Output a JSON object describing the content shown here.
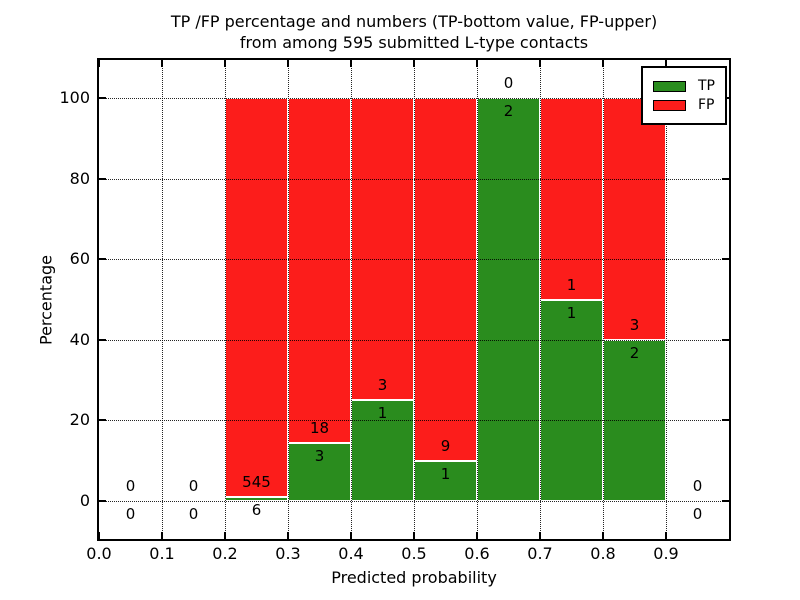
{
  "title": {
    "line1": "TP /FP percentage and numbers (TP-bottom value, FP-upper)",
    "line2": "from among 595 submitted L-type contacts"
  },
  "axes": {
    "ylabel": "Percentage",
    "xlabel": "Predicted probability",
    "ytick_labels": [
      "0",
      "20",
      "40",
      "60",
      "80",
      "100"
    ],
    "xtick_labels": [
      "0.0",
      "0.1",
      "0.2",
      "0.3",
      "0.4",
      "0.5",
      "0.6",
      "0.7",
      "0.8",
      "0.9"
    ]
  },
  "legend": {
    "tp": "TP",
    "fp": "FP"
  },
  "colors": {
    "tp_green": "#2a8c1e",
    "fp_red": "#fc1d1b",
    "grid": "#000000",
    "background": "#ffffff"
  },
  "chart_data": {
    "type": "bar",
    "stacked": true,
    "title": "TP /FP percentage and numbers (TP-bottom value, FP-upper)\nfrom among 595 submitted L-type contacts",
    "total_submitted": 595,
    "xlabel": "Predicted probability",
    "ylabel": "Percentage",
    "xlim": [
      0.0,
      1.0
    ],
    "ylim": [
      -9.5,
      109.5
    ],
    "xticks": [
      0.0,
      0.1,
      0.2,
      0.3,
      0.4,
      0.5,
      0.6,
      0.7,
      0.8,
      0.9
    ],
    "yticks": [
      0,
      20,
      40,
      60,
      80,
      100
    ],
    "grid": "dotted",
    "legend_position": "upper right",
    "series": [
      {
        "name": "TP",
        "color": "#2a8c1e",
        "position": "bottom"
      },
      {
        "name": "FP",
        "color": "#fc1d1b",
        "position": "top"
      }
    ],
    "bins": [
      {
        "x0": 0.0,
        "x1": 0.1,
        "tp": 0,
        "fp": 0,
        "tp_pct": null
      },
      {
        "x0": 0.1,
        "x1": 0.2,
        "tp": 0,
        "fp": 0,
        "tp_pct": null
      },
      {
        "x0": 0.2,
        "x1": 0.3,
        "tp": 6,
        "fp": 545,
        "tp_pct": 1.09
      },
      {
        "x0": 0.3,
        "x1": 0.4,
        "tp": 3,
        "fp": 18,
        "tp_pct": 14.29
      },
      {
        "x0": 0.4,
        "x1": 0.5,
        "tp": 1,
        "fp": 3,
        "tp_pct": 25.0
      },
      {
        "x0": 0.5,
        "x1": 0.6,
        "tp": 1,
        "fp": 9,
        "tp_pct": 10.0
      },
      {
        "x0": 0.6,
        "x1": 0.7,
        "tp": 2,
        "fp": 0,
        "tp_pct": 100.0
      },
      {
        "x0": 0.7,
        "x1": 0.8,
        "tp": 1,
        "fp": 1,
        "tp_pct": 50.0
      },
      {
        "x0": 0.8,
        "x1": 0.9,
        "tp": 2,
        "fp": 3,
        "tp_pct": 40.0
      },
      {
        "x0": 0.9,
        "x1": 1.0,
        "tp": 0,
        "fp": 0,
        "tp_pct": null
      }
    ]
  }
}
